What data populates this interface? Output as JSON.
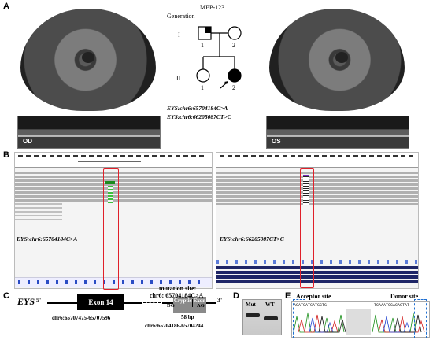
{
  "figure": {
    "panels": {
      "A": "A",
      "B": "B",
      "C": "C",
      "D": "D",
      "E": "E"
    },
    "panel_a": {
      "left_eye_label": "OD",
      "left_oct_label": "OD",
      "right_eye_label": "OS",
      "right_oct_label": "OS",
      "pedigree": {
        "generation_label": "Generation",
        "family_id": "MEP-123",
        "gen_I": "I",
        "gen_II": "II",
        "I_1": "1",
        "I_2": "2",
        "II_1": "1",
        "II_2": "2",
        "variant_1": "EYS:chr6:65704184C>A",
        "variant_2": "EYS:chr6:66205087CT>C"
      }
    },
    "panel_b": {
      "left_variant": "EYS:chr6:65704184C>A",
      "right_variant": "EYS:chr6:66205087CT>C"
    },
    "panel_c": {
      "gene": "EYS",
      "five_prime": "5'",
      "three_prime": "3'",
      "exon_label": "Exon 14",
      "exon_coords": "chr6:65707475-65707596",
      "mutation_title": "mutation site:",
      "mutation_site": "chr6: 65704184C>A",
      "dg": "DG",
      "ag": "AG",
      "cryptic_exon": "Cryptic Exon",
      "cryptic_size": "58 bp",
      "cryptic_coords": "chr6:65704186-65704244"
    },
    "panel_d": {
      "mut": "Mut",
      "wt": "WT"
    },
    "panel_e": {
      "acceptor": "Acceptor site",
      "donor": "Donor site",
      "seq_left": "AGATGATGATGCTG",
      "seq_right": "TCAAATCCACAGTAT"
    },
    "colors": {
      "highlight_red": "#e0202a",
      "dashed_blue": "#1f6fd1",
      "igv_navy": "#1e2566",
      "cryptic_exon_gray": "#8a8a8a"
    }
  }
}
